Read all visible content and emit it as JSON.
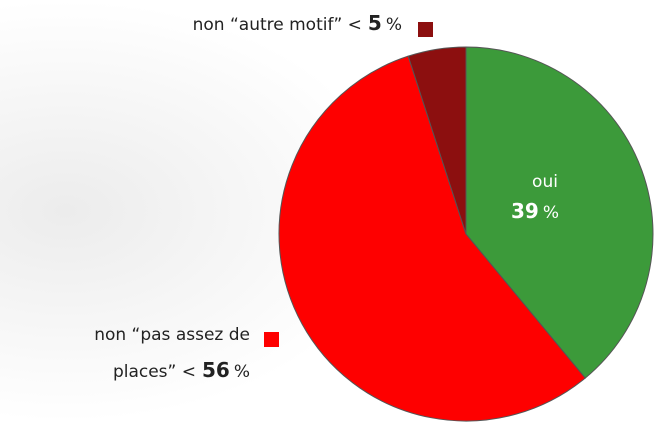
{
  "chart_data": {
    "type": "pie",
    "categories": [
      [
        "oui"
      ],
      [
        "non “pas assez de",
        "places” <"
      ],
      [
        "non “autre motif” <"
      ]
    ],
    "values": [
      39,
      56,
      5
    ],
    "unit": "%",
    "colors": [
      "#3c9a3a",
      "#fe0000",
      "#8c0f0f"
    ]
  }
}
